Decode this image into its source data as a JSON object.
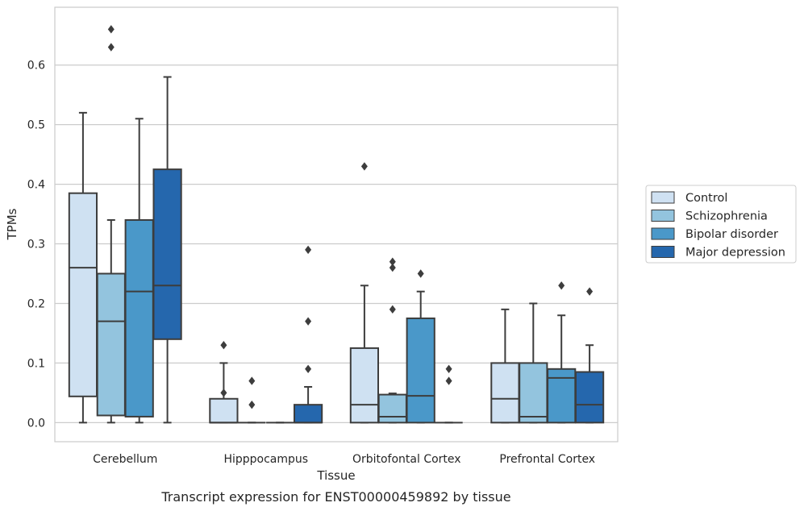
{
  "chart_data": {
    "type": "box",
    "title": "Transcript expression for ENST00000459892 by tissue",
    "xlabel": "Tissue",
    "ylabel": "TPMs",
    "ylim": [
      -0.032,
      0.697
    ],
    "yticks": [
      "0.0",
      "0.1",
      "0.2",
      "0.3",
      "0.4",
      "0.5",
      "0.6"
    ],
    "grid": true,
    "legend_position": "right",
    "categories": [
      "Cerebellum",
      "Hipppocampus",
      "Orbitofontal Cortex",
      "Prefrontal Cortex"
    ],
    "series": [
      {
        "name": "Control",
        "color": "#cfe1f2",
        "boxes": [
          {
            "whislo": 0.0,
            "q1": 0.044,
            "med": 0.26,
            "q3": 0.385,
            "whishi": 0.52,
            "fliers": []
          },
          {
            "whislo": 0.0,
            "q1": 0.0,
            "med": 0.0,
            "q3": 0.04,
            "whishi": 0.1,
            "fliers": [
              0.13,
              0.05
            ]
          },
          {
            "whislo": 0.0,
            "q1": 0.0,
            "med": 0.03,
            "q3": 0.125,
            "whishi": 0.23,
            "fliers": [
              0.43
            ]
          },
          {
            "whislo": 0.0,
            "q1": 0.0,
            "med": 0.04,
            "q3": 0.1,
            "whishi": 0.19,
            "fliers": []
          }
        ]
      },
      {
        "name": "Schizophrenia",
        "color": "#93c4de",
        "boxes": [
          {
            "whislo": 0.0,
            "q1": 0.012,
            "med": 0.17,
            "q3": 0.25,
            "whishi": 0.34,
            "fliers": [
              0.66,
              0.63
            ]
          },
          {
            "whislo": 0.0,
            "q1": 0.0,
            "med": 0.0,
            "q3": 0.0,
            "whishi": 0.0,
            "fliers": [
              0.07,
              0.03
            ]
          },
          {
            "whislo": 0.0,
            "q1": 0.0,
            "med": 0.01,
            "q3": 0.047,
            "whishi": 0.049,
            "fliers": [
              0.27,
              0.26,
              0.19
            ]
          },
          {
            "whislo": 0.0,
            "q1": 0.0,
            "med": 0.01,
            "q3": 0.1,
            "whishi": 0.2,
            "fliers": []
          }
        ]
      },
      {
        "name": "Bipolar disorder",
        "color": "#4a98c9",
        "boxes": [
          {
            "whislo": 0.0,
            "q1": 0.01,
            "med": 0.22,
            "q3": 0.34,
            "whishi": 0.51,
            "fliers": []
          },
          {
            "whislo": 0.0,
            "q1": 0.0,
            "med": 0.0,
            "q3": 0.0,
            "whishi": 0.0,
            "fliers": []
          },
          {
            "whislo": 0.0,
            "q1": 0.0,
            "med": 0.045,
            "q3": 0.175,
            "whishi": 0.22,
            "fliers": [
              0.25
            ]
          },
          {
            "whislo": 0.0,
            "q1": 0.0,
            "med": 0.075,
            "q3": 0.09,
            "whishi": 0.18,
            "fliers": [
              0.23
            ]
          }
        ]
      },
      {
        "name": "Major depression",
        "color": "#2567ad",
        "boxes": [
          {
            "whislo": 0.0,
            "q1": 0.14,
            "med": 0.23,
            "q3": 0.425,
            "whishi": 0.58,
            "fliers": []
          },
          {
            "whislo": 0.0,
            "q1": 0.0,
            "med": 0.0,
            "q3": 0.03,
            "whishi": 0.06,
            "fliers": [
              0.29,
              0.17,
              0.09
            ]
          },
          {
            "whislo": 0.0,
            "q1": 0.0,
            "med": 0.0,
            "q3": 0.0,
            "whishi": 0.0,
            "fliers": [
              0.09,
              0.07
            ]
          },
          {
            "whislo": 0.0,
            "q1": 0.0,
            "med": 0.03,
            "q3": 0.085,
            "whishi": 0.13,
            "fliers": [
              0.22
            ]
          }
        ]
      }
    ]
  }
}
